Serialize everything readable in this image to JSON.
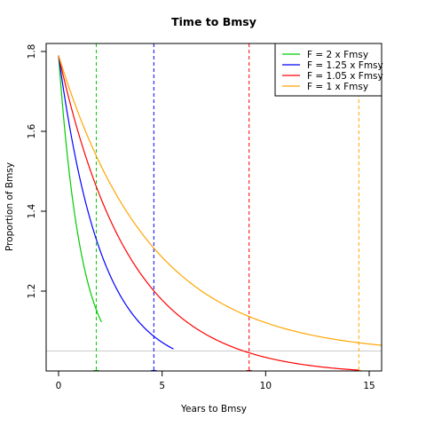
{
  "chart_data": {
    "type": "line",
    "title": "Time to Bmsy",
    "xlabel": "Years to Bmsy",
    "ylabel": "Proportion of Bmsy",
    "xlim": [
      -0.6,
      15.6
    ],
    "ylim": [
      1.0,
      1.82
    ],
    "xticks": [
      0,
      5,
      10,
      15
    ],
    "yticks": [
      1.2,
      1.4,
      1.6,
      1.8
    ],
    "xtick_labels": [
      "0",
      "5",
      "10",
      "15"
    ],
    "ytick_labels": [
      "1.2",
      "1.4",
      "1.6",
      "1.8"
    ],
    "reference_line_y": 1.05,
    "reference_line_color": "#cccccc",
    "legend_position": "top-right",
    "series": [
      {
        "name": "F = 2 x Fmsy",
        "color": "#00cc00",
        "y0": 1.79,
        "target": 1.0,
        "k": 0.9,
        "x_end": 2.07,
        "vline_x": 1.82
      },
      {
        "name": "F = 1.25 x Fmsy",
        "color": "#0000ff",
        "y0": 1.79,
        "target": 1.0,
        "k": 0.48,
        "x_end": 5.55,
        "vline_x": 4.6
      },
      {
        "name": "F = 1.05 x Fmsy",
        "color": "#ff0000",
        "y0": 1.79,
        "target": 0.99,
        "k": 0.29,
        "x_end": 14.5,
        "vline_x": 9.2
      },
      {
        "name": "F = 1 x Fmsy",
        "color": "#ffa500",
        "y0": 1.79,
        "target": 1.042,
        "k": 0.225,
        "x_end": 15.6,
        "vline_x": 14.5
      }
    ]
  }
}
